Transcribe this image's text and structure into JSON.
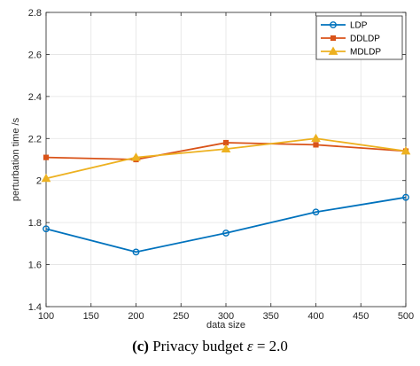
{
  "chart_data": {
    "type": "line",
    "xlabel": "data size",
    "ylabel": "perturbation time /s",
    "xlim": [
      100,
      500
    ],
    "ylim": [
      1.4,
      2.8
    ],
    "xticks": [
      100,
      150,
      200,
      250,
      300,
      350,
      400,
      450,
      500
    ],
    "yticks": [
      1.4,
      1.6,
      1.8,
      2.0,
      2.2,
      2.4,
      2.6,
      2.8
    ],
    "xtick_labels": [
      "100",
      "150",
      "200",
      "250",
      "300",
      "350",
      "400",
      "450",
      "500"
    ],
    "ytick_labels": [
      "1.4",
      "1.6",
      "1.8",
      "2",
      "2.2",
      "2.4",
      "2.6",
      "2.8"
    ],
    "grid": true,
    "legend_position": "top-right",
    "x": [
      100,
      200,
      300,
      400,
      500
    ],
    "series": [
      {
        "name": "LDP",
        "color": "#0072BD",
        "marker": "circle",
        "values": [
          1.77,
          1.66,
          1.75,
          1.85,
          1.92
        ]
      },
      {
        "name": "DDLDP",
        "color": "#D95319",
        "marker": "square",
        "values": [
          2.11,
          2.1,
          2.18,
          2.17,
          2.14
        ]
      },
      {
        "name": "MDLDP",
        "color": "#EDB120",
        "marker": "triangle",
        "values": [
          2.01,
          2.11,
          2.15,
          2.2,
          2.14
        ]
      }
    ]
  },
  "caption": {
    "label": "(c)",
    "text_before": " Privacy budget ",
    "symbol": "ε",
    "text_after": " = 2.0"
  }
}
